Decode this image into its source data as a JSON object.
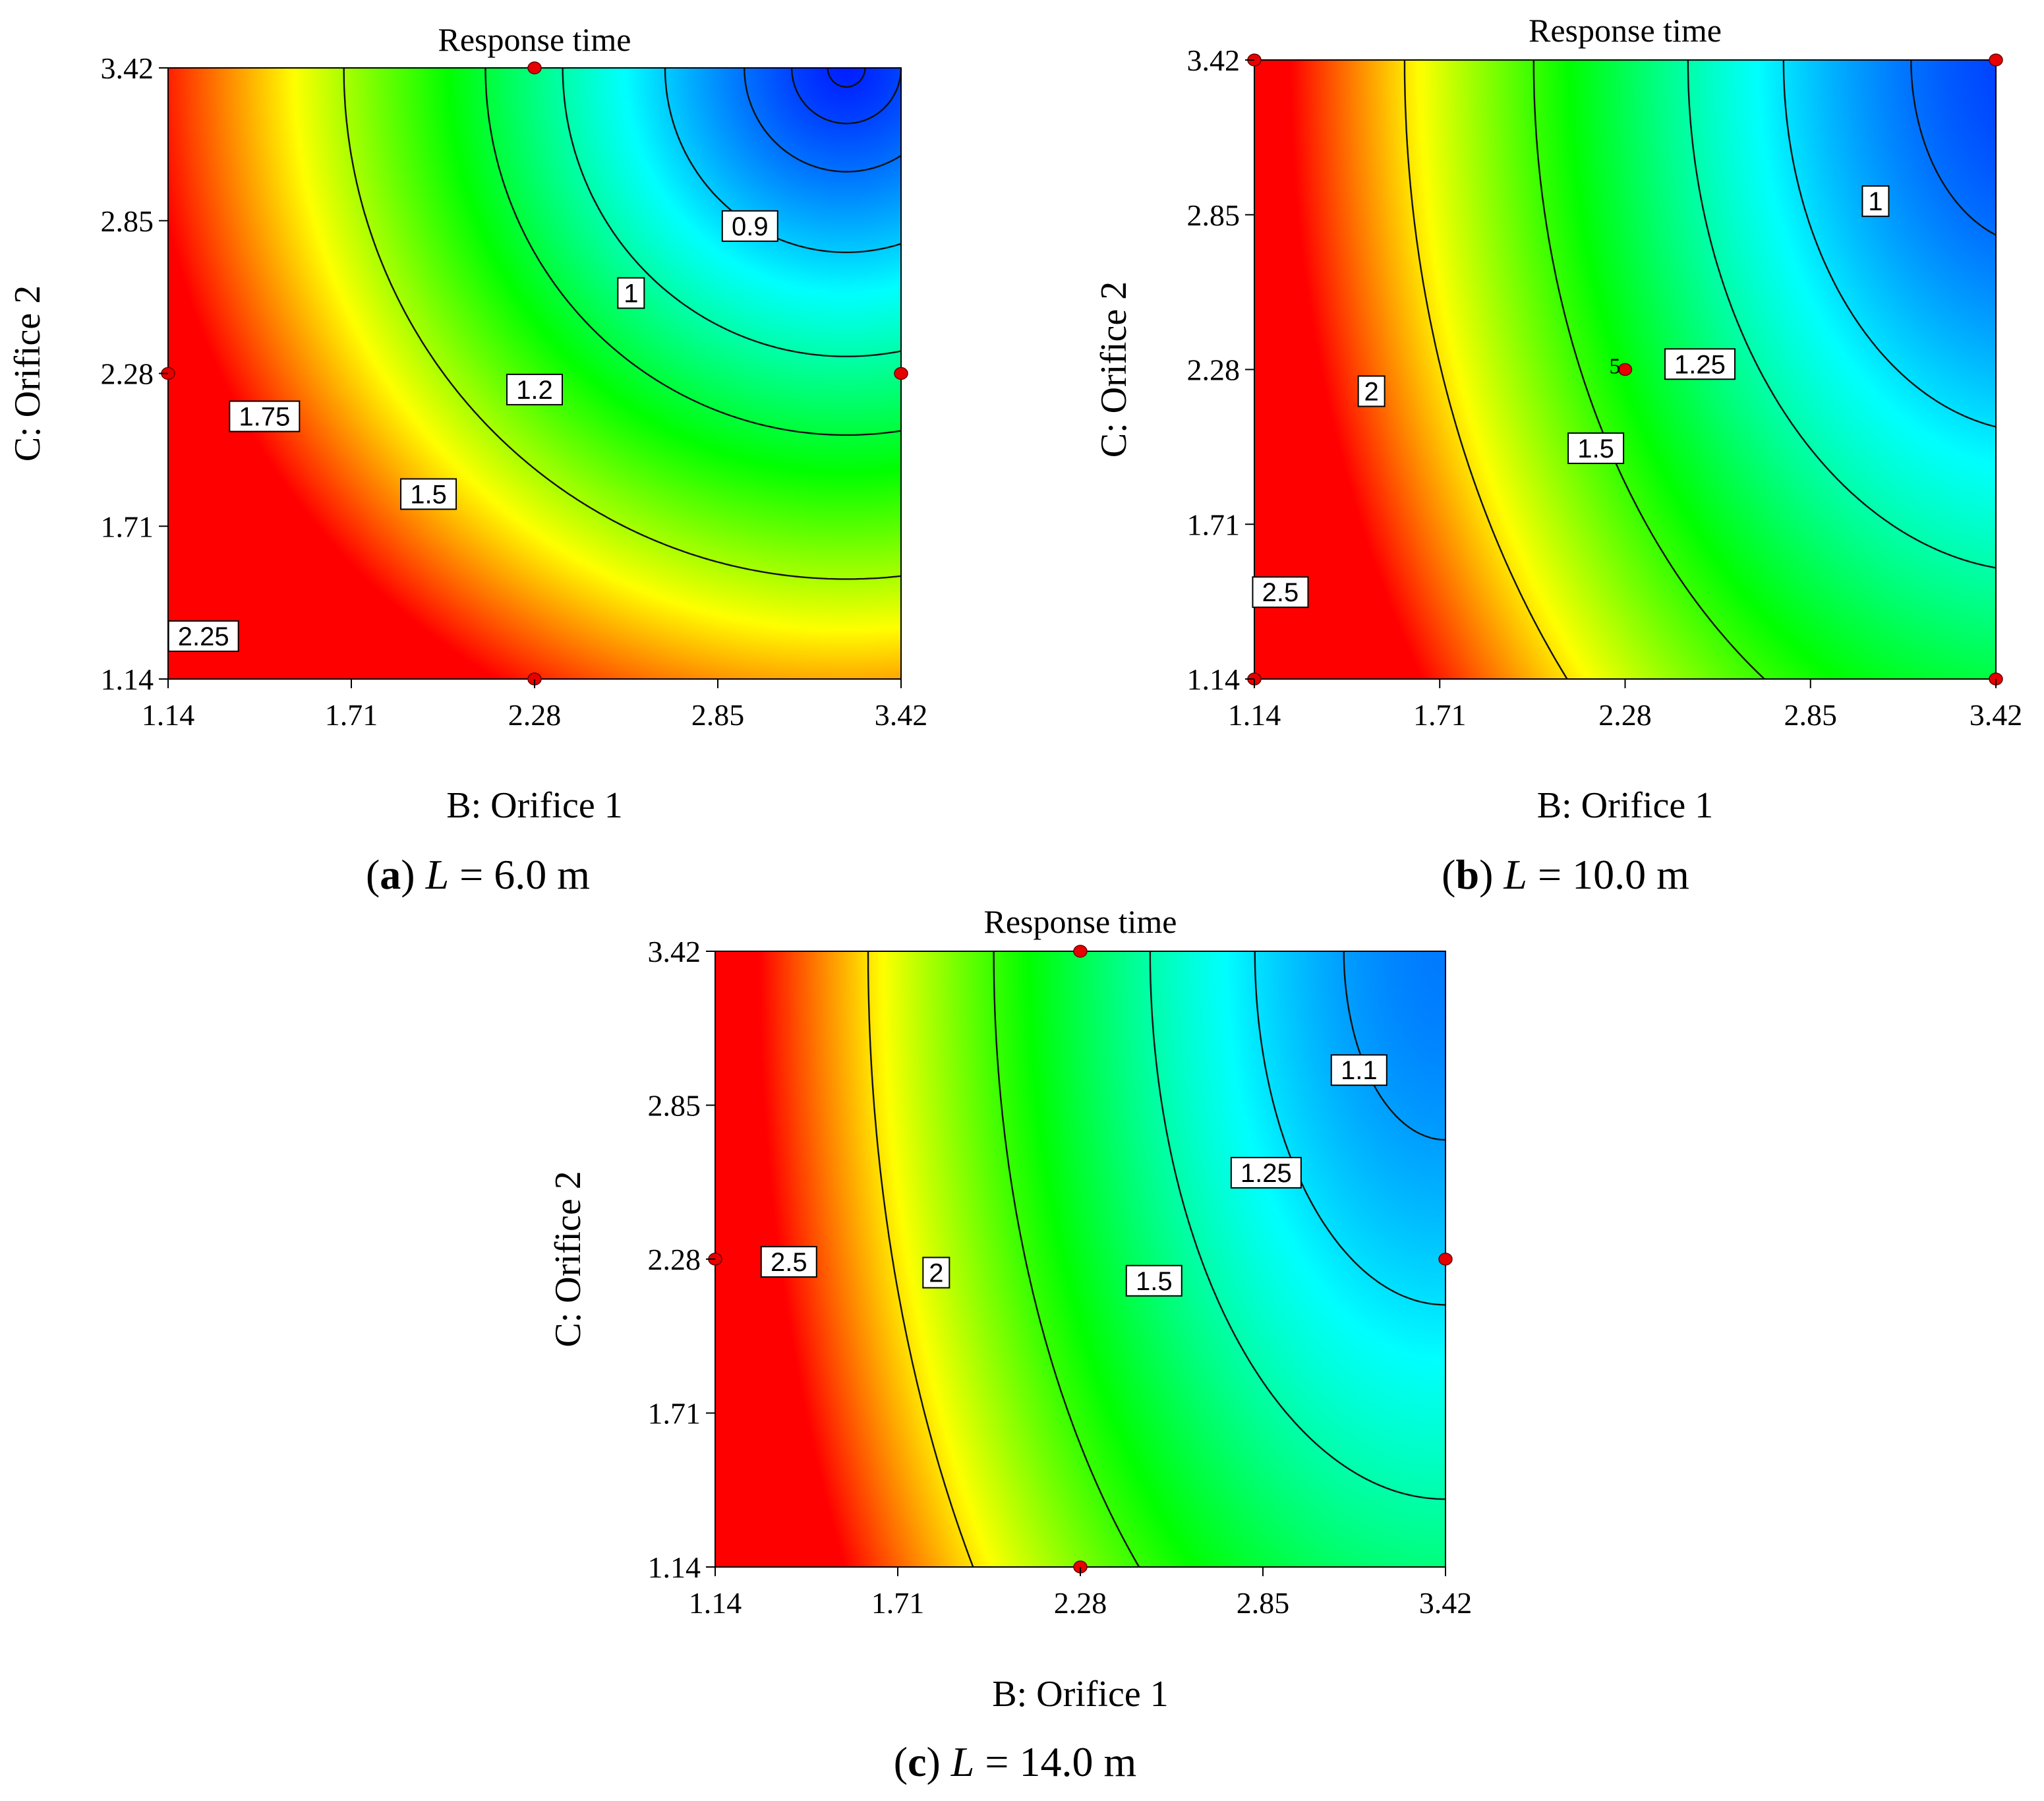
{
  "chart_data": [
    {
      "type": "contour",
      "panel": "a",
      "title": "Response time",
      "xlabel": "B: Orifice 1",
      "ylabel": "C: Orifice 2",
      "caption_letter": "a",
      "caption_rest": "L = 6.0 m",
      "x_ticks": [
        "1.14",
        "1.71",
        "2.28",
        "2.85",
        "3.42"
      ],
      "y_ticks": [
        "1.14",
        "1.71",
        "2.28",
        "2.85",
        "3.42"
      ],
      "xlim": [
        1.14,
        3.42
      ],
      "ylim": [
        1.14,
        3.42
      ],
      "model": {
        "c0": 0.82,
        "k": 0.8,
        "xc": 3.25,
        "yc": 3.42,
        "ax": 1.0,
        "ay": 1.22,
        "p": 1.3
      },
      "levels": [
        0.9,
        1,
        1.2,
        1.5,
        1.75,
        2.25,
        0.84
      ],
      "contour_labels": [
        {
          "text": "0.9",
          "x": 2.95,
          "y": 2.83
        },
        {
          "text": "1",
          "x": 2.58,
          "y": 2.58
        },
        {
          "text": "1.2",
          "x": 2.28,
          "y": 2.22
        },
        {
          "text": "1.5",
          "x": 1.95,
          "y": 1.83
        },
        {
          "text": "1.75",
          "x": 1.44,
          "y": 2.12
        },
        {
          "text": "2.25",
          "x": 1.25,
          "y": 1.3
        }
      ],
      "design_points": [
        {
          "x": 2.28,
          "y": 3.42
        },
        {
          "x": 1.14,
          "y": 2.28
        },
        {
          "x": 3.42,
          "y": 2.28
        },
        {
          "x": 2.28,
          "y": 1.14
        }
      ],
      "center_label": ""
    },
    {
      "type": "contour",
      "panel": "b",
      "title": "Response time",
      "xlabel": "B: Orifice 1",
      "ylabel": "C: Orifice 2",
      "caption_letter": "b",
      "caption_rest": "L = 10.0 m",
      "x_ticks": [
        "1.14",
        "1.71",
        "2.28",
        "2.85",
        "3.42"
      ],
      "y_ticks": [
        "1.14",
        "1.71",
        "2.28",
        "2.85",
        "3.42"
      ],
      "xlim": [
        1.14,
        3.42
      ],
      "ylim": [
        1.14,
        3.42
      ],
      "model": {
        "c0": 0.88,
        "k": 0.55,
        "xc": 3.55,
        "yc": 3.42,
        "ax": 1.0,
        "ay": 1.75,
        "p": 1.62
      },
      "levels": [
        1,
        1.25,
        1.5,
        2,
        2.5
      ],
      "contour_labels": [
        {
          "text": "1",
          "x": 3.05,
          "y": 2.9
        },
        {
          "text": "1.25",
          "x": 2.51,
          "y": 2.3
        },
        {
          "text": "1.5",
          "x": 2.19,
          "y": 1.99
        },
        {
          "text": "2",
          "x": 1.5,
          "y": 2.2
        },
        {
          "text": "2.5",
          "x": 1.22,
          "y": 1.46
        }
      ],
      "design_points": [
        {
          "x": 1.14,
          "y": 3.42
        },
        {
          "x": 3.42,
          "y": 3.42
        },
        {
          "x": 2.28,
          "y": 2.28
        },
        {
          "x": 1.14,
          "y": 1.14
        },
        {
          "x": 3.42,
          "y": 1.14
        }
      ],
      "center_label": "5"
    },
    {
      "type": "contour",
      "panel": "c",
      "title": "Response time",
      "xlabel": "B: Orifice 1",
      "ylabel": "C: Orifice 2",
      "caption_letter": "c",
      "caption_rest": "L = 14.0 m",
      "x_ticks": [
        "1.14",
        "1.71",
        "2.28",
        "2.85",
        "3.42"
      ],
      "y_ticks": [
        "1.14",
        "1.71",
        "2.28",
        "2.85",
        "3.42"
      ],
      "xlim": [
        1.14,
        3.42
      ],
      "ylim": [
        1.14,
        3.42
      ],
      "model": {
        "c0": 1.02,
        "k": 0.55,
        "xc": 3.42,
        "yc": 3.42,
        "ax": 1.0,
        "ay": 2.2,
        "p": 1.68
      },
      "levels": [
        1.1,
        1.25,
        1.5,
        2,
        2.5
      ],
      "contour_labels": [
        {
          "text": "1.1",
          "x": 3.15,
          "y": 2.98
        },
        {
          "text": "1.25",
          "x": 2.86,
          "y": 2.6
        },
        {
          "text": "1.5",
          "x": 2.51,
          "y": 2.2
        },
        {
          "text": "2",
          "x": 1.83,
          "y": 2.23
        },
        {
          "text": "2.5",
          "x": 1.37,
          "y": 2.27
        }
      ],
      "design_points": [
        {
          "x": 2.28,
          "y": 3.42
        },
        {
          "x": 1.14,
          "y": 2.28
        },
        {
          "x": 3.42,
          "y": 2.28
        },
        {
          "x": 2.28,
          "y": 1.14
        }
      ],
      "center_label": ""
    }
  ]
}
